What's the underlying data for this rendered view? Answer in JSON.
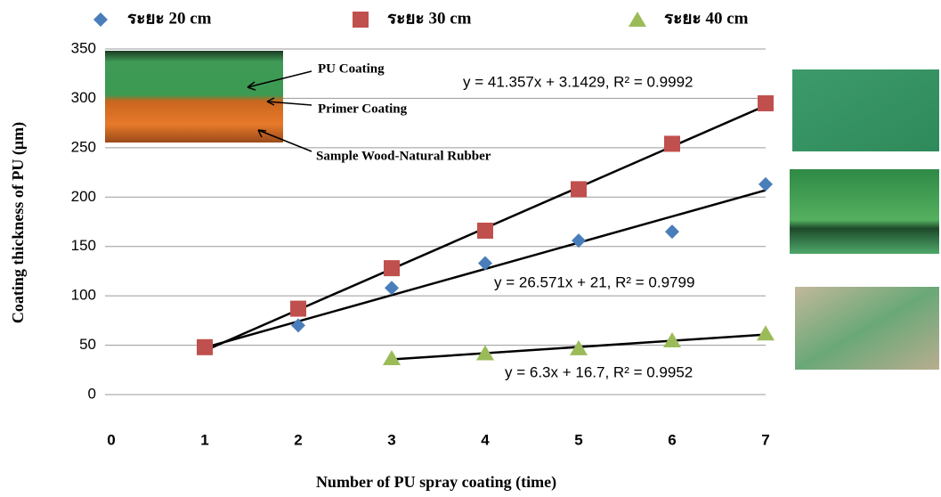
{
  "chart_data": {
    "type": "scatter",
    "x_label": "Number of PU spray coating (time)",
    "y_label": "Coating thickness of PU  (μm)",
    "xlim": [
      0,
      7
    ],
    "xticks": [
      0,
      1,
      2,
      3,
      4,
      5,
      6,
      7
    ],
    "ylim": [
      0,
      350
    ],
    "yticks": [
      0,
      50,
      100,
      150,
      200,
      250,
      300,
      350
    ],
    "grid": true,
    "annotations": [
      "PU Coating",
      "Primer Coating",
      "Sample  Wood-Natural  Rubber"
    ],
    "series": [
      {
        "name": "ระยะ 20 cm",
        "color": "#4a7ebb",
        "marker": "diamond",
        "x": [
          1,
          2,
          3,
          4,
          5,
          6,
          7
        ],
        "values": [
          48,
          70,
          108,
          133,
          156,
          165,
          213
        ],
        "trendline": {
          "equation": "y = 26.571x + 21, R² = 0.9799",
          "slope": 26.571,
          "intercept": 21
        }
      },
      {
        "name": "ระยะ 30 cm",
        "color": "#c0504d",
        "marker": "square",
        "x": [
          1,
          2,
          3,
          4,
          5,
          6,
          7
        ],
        "values": [
          48,
          87,
          128,
          166,
          208,
          254,
          295
        ],
        "trendline": {
          "equation": "y = 41.357x + 3.1429, R² = 0.9992",
          "slope": 41.357,
          "intercept": 3.1429
        }
      },
      {
        "name": "ระยะ 40 cm",
        "color": "#9bbb59",
        "marker": "triangle",
        "x": [
          3,
          4,
          5,
          6,
          7
        ],
        "values": [
          37,
          42,
          47,
          55,
          62
        ],
        "trendline": {
          "equation": "y = 6.3x + 16.7, R² = 0.9952",
          "slope": 6.3,
          "intercept": 16.7
        }
      }
    ]
  }
}
